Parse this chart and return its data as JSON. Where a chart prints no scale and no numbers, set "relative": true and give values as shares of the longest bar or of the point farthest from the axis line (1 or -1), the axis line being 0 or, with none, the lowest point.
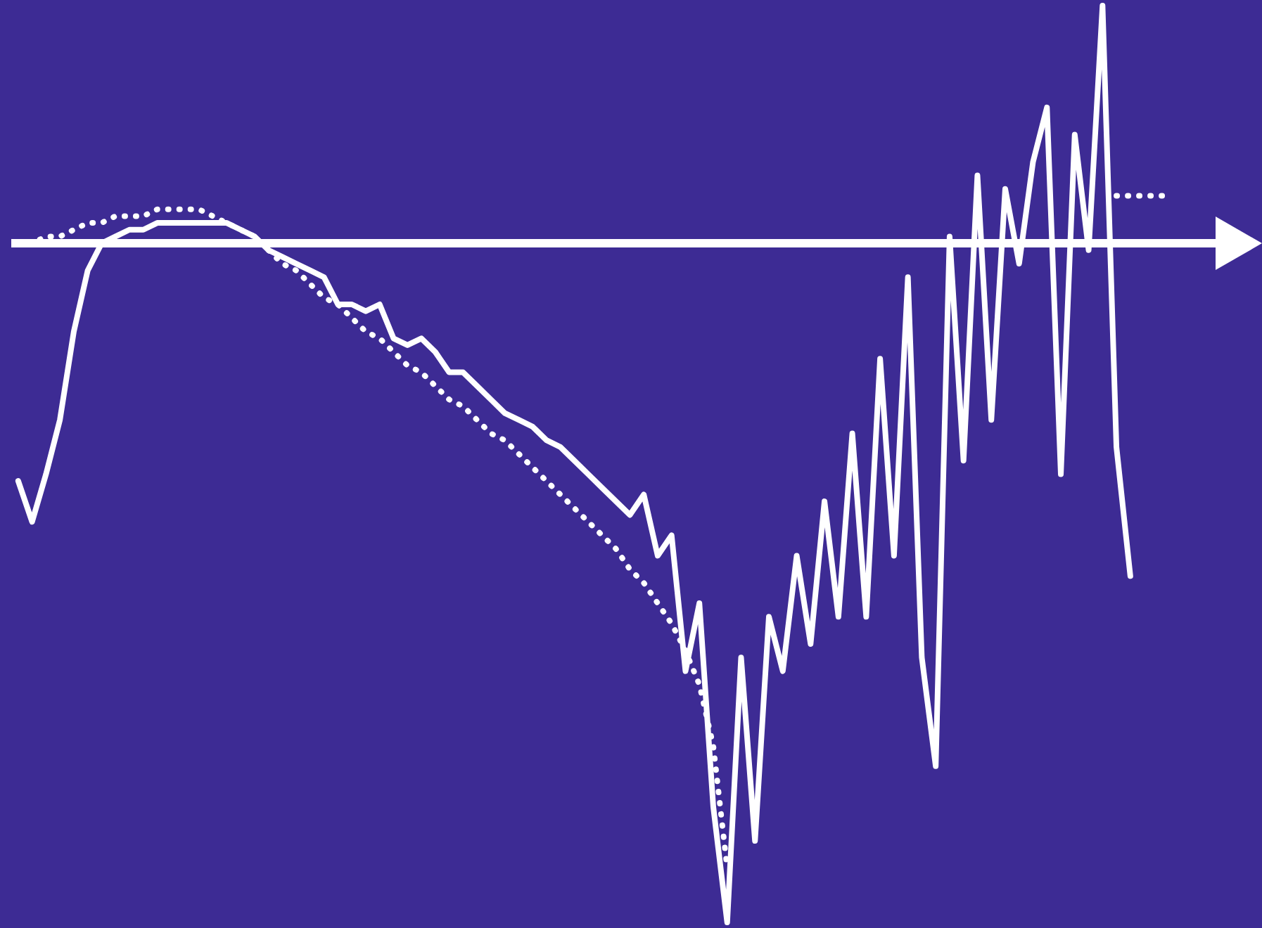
{
  "chart_data": {
    "type": "line",
    "relative": true,
    "categories": [
      null,
      null,
      null,
      null,
      null,
      null,
      null,
      null,
      null,
      null,
      null,
      null,
      null,
      null,
      null,
      null,
      null,
      null,
      null,
      null,
      null,
      null,
      null,
      null,
      null,
      null,
      null,
      null,
      null,
      null,
      null,
      null,
      null,
      null,
      null,
      null,
      null,
      null,
      null,
      null,
      null,
      null,
      null,
      null,
      null,
      null,
      null,
      null,
      null,
      null,
      null,
      null,
      null,
      null,
      null,
      null,
      null,
      null,
      null,
      null,
      null,
      null,
      null,
      null,
      null,
      null,
      null,
      null,
      null,
      null,
      null,
      null,
      null,
      null,
      null,
      null,
      null,
      null,
      null,
      null,
      null,
      null,
      null,
      null
    ],
    "series": [
      {
        "color": "#ffffff",
        "line_style": "solid",
        "values": [
          -0.35,
          -0.41,
          -0.34,
          -0.26,
          -0.13,
          -0.04,
          0.0,
          0.01,
          0.02,
          0.02,
          0.03,
          0.03,
          0.03,
          0.03,
          0.03,
          0.03,
          0.02,
          0.01,
          -0.01,
          -0.02,
          -0.03,
          -0.04,
          -0.05,
          -0.09,
          -0.09,
          -0.1,
          -0.09,
          -0.14,
          -0.15,
          -0.14,
          -0.16,
          -0.19,
          -0.19,
          -0.21,
          -0.23,
          -0.25,
          -0.26,
          -0.27,
          -0.29,
          -0.3,
          -0.32,
          -0.34,
          -0.36,
          -0.38,
          -0.4,
          -0.37,
          -0.46,
          -0.43,
          -0.63,
          -0.53,
          -0.83,
          -1,
          -0.61,
          -0.88,
          -0.55,
          -0.63,
          -0.46,
          -0.59,
          -0.38,
          -0.55,
          -0.28,
          -0.55,
          -0.17,
          -0.46,
          -0.05,
          -0.61,
          -0.77,
          0.01,
          -0.32,
          0.1,
          -0.26,
          0.08,
          -0.03,
          0.12,
          0.2,
          -0.34,
          0.16,
          -0.01,
          0.35,
          -0.3,
          -0.49,
          null,
          null,
          null
        ]
      },
      {
        "color": "#ffffff",
        "line_style": "dotted",
        "values": [
          0,
          0.0,
          0.01,
          0.01,
          0.02,
          0.03,
          0.03,
          0.04,
          0.04,
          0.04,
          0.05,
          0.05,
          0.05,
          0.05,
          0.04,
          0.03,
          0.02,
          0.01,
          -0.01,
          -0.03,
          -0.04,
          -0.06,
          -0.08,
          -0.09,
          -0.11,
          -0.13,
          -0.14,
          -0.16,
          -0.18,
          -0.19,
          -0.21,
          -0.23,
          -0.24,
          -0.26,
          -0.28,
          -0.29,
          -0.31,
          -0.33,
          -0.35,
          -0.37,
          -0.39,
          -0.41,
          -0.43,
          -0.45,
          -0.48,
          -0.5,
          -0.53,
          -0.56,
          -0.6,
          -0.65,
          -0.74,
          -0.92,
          null,
          null,
          null,
          null,
          null,
          null,
          null,
          null,
          null,
          null,
          null,
          null,
          null,
          null,
          null,
          null,
          null,
          null,
          null,
          null,
          null,
          null,
          null,
          null,
          null,
          null,
          null,
          0.07,
          0.07,
          0.07,
          0.07,
          0.07
        ]
      }
    ]
  }
}
